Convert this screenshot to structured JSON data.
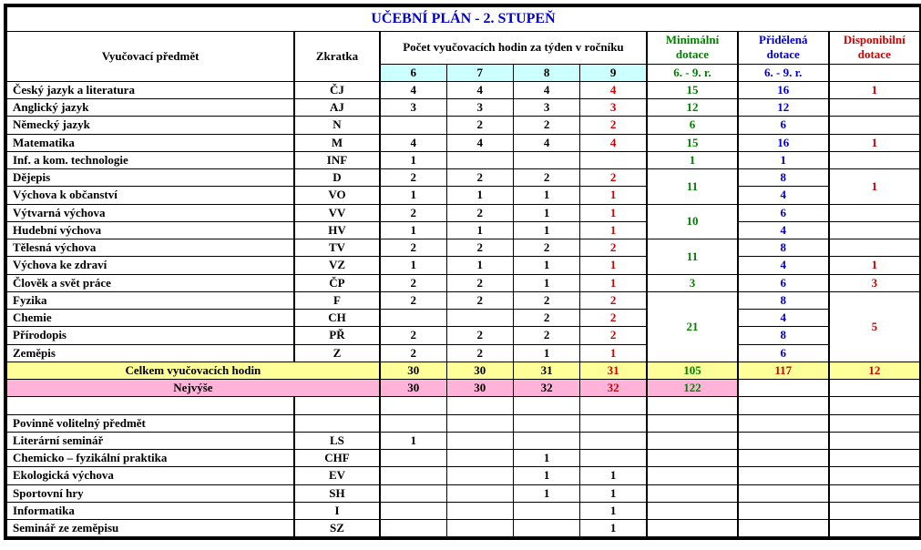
{
  "title": "UČEBNÍ PLÁN - 2. STUPEŇ",
  "headers": {
    "subject": "Vyučovací předmět",
    "abbrev": "Zkratka",
    "hours_span": "Počet vyučovacích hodin za týden v ročníku",
    "minimal": "Minimální dotace",
    "assigned": "Přidělená dotace",
    "available": "Disponibilní dotace",
    "grades": [
      "6",
      "7",
      "8",
      "9"
    ],
    "range": "6. - 9. r."
  },
  "rows": [
    {
      "s": "Český jazyk a literatura",
      "a": "ČJ",
      "g": [
        "4",
        "4",
        "4",
        "4"
      ],
      "min": "15",
      "ass": "16",
      "disp": "1"
    },
    {
      "s": "Anglický jazyk",
      "a": "AJ",
      "g": [
        "3",
        "3",
        "3",
        "3"
      ],
      "min": "12",
      "ass": "12",
      "disp": ""
    },
    {
      "s": "Německý jazyk",
      "a": "N",
      "g": [
        "",
        "2",
        "2",
        "2"
      ],
      "min": "6",
      "ass": "6",
      "disp": ""
    },
    {
      "s": "Matematika",
      "a": "M",
      "g": [
        "4",
        "4",
        "4",
        "4"
      ],
      "min": "15",
      "ass": "16",
      "disp": "1"
    },
    {
      "s": "Inf. a kom. technologie",
      "a": "INF",
      "g": [
        "1",
        "",
        "",
        ""
      ],
      "min": "1",
      "ass": "1",
      "disp": ""
    },
    {
      "s": "Dějepis",
      "a": "D",
      "g": [
        "2",
        "2",
        "2",
        "2"
      ],
      "min": "11",
      "min_span": 2,
      "ass": "8",
      "disp": "1",
      "disp_span": 2
    },
    {
      "s": "Výchova k občanství",
      "a": "VO",
      "g": [
        "1",
        "1",
        "1",
        "1"
      ],
      "ass": "4"
    },
    {
      "s": "Výtvarná výchova",
      "a": "VV",
      "g": [
        "2",
        "2",
        "1",
        "1"
      ],
      "min": "10",
      "min_span": 2,
      "ass": "6",
      "disp": ""
    },
    {
      "s": "Hudební výchova",
      "a": "HV",
      "g": [
        "1",
        "1",
        "1",
        "1"
      ],
      "ass": "4"
    },
    {
      "s": "Tělesná výchova",
      "a": "TV",
      "g": [
        "2",
        "2",
        "2",
        "2"
      ],
      "min": "11",
      "min_span": 2,
      "ass": "8",
      "disp": ""
    },
    {
      "s": "Výchova ke zdraví",
      "a": "VZ",
      "g": [
        "1",
        "1",
        "1",
        "1"
      ],
      "ass": "4",
      "disp": "1"
    },
    {
      "s": "Člověk a svět práce",
      "a": "ČP",
      "g": [
        "2",
        "2",
        "1",
        "1"
      ],
      "min": "3",
      "ass": "6",
      "disp": "3"
    },
    {
      "s": "Fyzika",
      "a": "F",
      "g": [
        "2",
        "2",
        "2",
        "2"
      ],
      "min": "21",
      "min_span": 4,
      "ass": "8",
      "disp": "5",
      "disp_span": 4
    },
    {
      "s": "Chemie",
      "a": "CH",
      "g": [
        "",
        "",
        "2",
        "2"
      ],
      "ass": "4"
    },
    {
      "s": "Přírodopis",
      "a": "PŘ",
      "g": [
        "2",
        "2",
        "2",
        "2"
      ],
      "ass": "8"
    },
    {
      "s": "Zeměpis",
      "a": "Z",
      "g": [
        "2",
        "2",
        "1",
        "1"
      ],
      "ass": "6"
    }
  ],
  "total": {
    "label": "Celkem vyučovacích hodin",
    "g": [
      "30",
      "30",
      "31",
      "31"
    ],
    "min": "105",
    "ass": "117",
    "disp": "12"
  },
  "max": {
    "label": "Nejvýše",
    "g": [
      "30",
      "30",
      "32",
      "32"
    ],
    "min": "122",
    "ass": "",
    "disp": ""
  },
  "elective_header": "Povinně volitelný předmět",
  "electives": [
    {
      "s": "Literární seminář",
      "a": "LS",
      "g": [
        "1",
        "",
        "",
        ""
      ]
    },
    {
      "s": "Chemicko – fyzikální praktika",
      "a": "CHF",
      "g": [
        "",
        "",
        "1",
        ""
      ]
    },
    {
      "s": "Ekologická výchova",
      "a": "EV",
      "g": [
        "",
        "",
        "1",
        "1"
      ]
    },
    {
      "s": "Sportovní hry",
      "a": "SH",
      "g": [
        "",
        "",
        "1",
        "1"
      ]
    },
    {
      "s": "Informatika",
      "a": "I",
      "g": [
        "",
        "",
        "",
        "1"
      ]
    },
    {
      "s": "Seminář ze zeměpisu",
      "a": "SZ",
      "g": [
        "",
        "",
        "",
        "1"
      ]
    }
  ],
  "colors": {
    "title": "#0000cc",
    "green": "#008000",
    "blue": "#0000cc",
    "red": "#cc0000",
    "grade_bg": "#ccffff",
    "yellow": "#ffff99",
    "pink": "#ffb3d9"
  }
}
